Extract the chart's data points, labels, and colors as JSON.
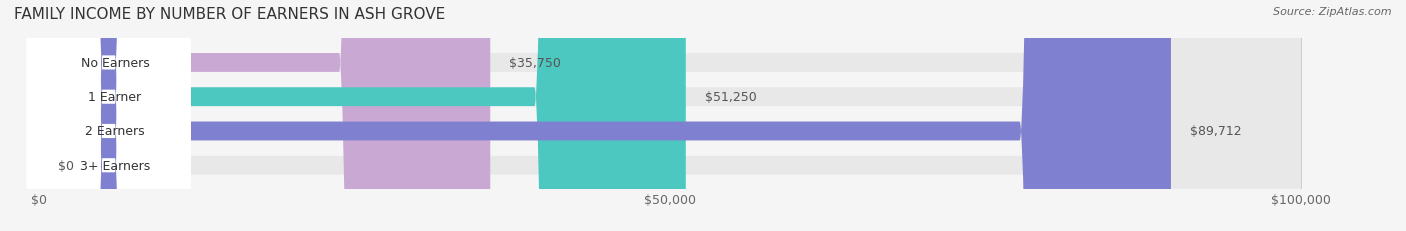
{
  "title": "FAMILY INCOME BY NUMBER OF EARNERS IN ASH GROVE",
  "source": "Source: ZipAtlas.com",
  "categories": [
    "No Earners",
    "1 Earner",
    "2 Earners",
    "3+ Earners"
  ],
  "values": [
    35750,
    51250,
    89712,
    0
  ],
  "bar_colors": [
    "#c9a8d4",
    "#4dc8c0",
    "#8080d0",
    "#f4a0b8"
  ],
  "label_colors": [
    "#c9a8d4",
    "#4dc8c0",
    "#8080d0",
    "#f4a0b8"
  ],
  "value_labels": [
    "$35,750",
    "$51,250",
    "$89,712",
    "$0"
  ],
  "xlim": [
    0,
    100000
  ],
  "xticks": [
    0,
    50000,
    100000
  ],
  "xtick_labels": [
    "$0",
    "$50,000",
    "$100,000"
  ],
  "bar_height": 0.55,
  "bg_color": "#f5f5f5",
  "bar_bg_color": "#e8e8e8",
  "title_fontsize": 11,
  "label_fontsize": 9,
  "value_fontsize": 9,
  "source_fontsize": 8
}
